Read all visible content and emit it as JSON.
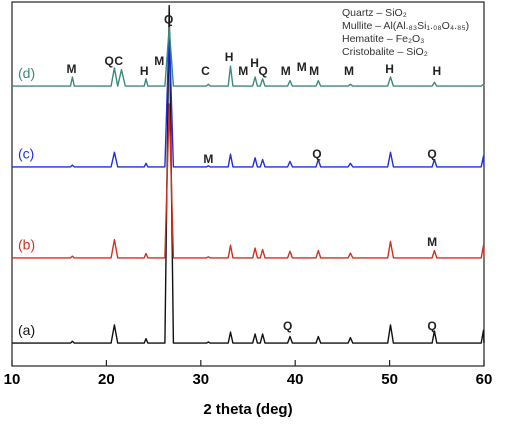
{
  "chart_data": {
    "type": "line",
    "xlabel": "2 theta (deg)",
    "xlim": [
      10,
      60
    ],
    "xticks": [
      10,
      20,
      30,
      40,
      50,
      60
    ],
    "ylim": [
      0,
      100
    ],
    "x": [
      10,
      16.2,
      16.4,
      16.6,
      20.5,
      20.85,
      21.2,
      21.6,
      22.0,
      24.0,
      24.2,
      24.4,
      26.2,
      26.65,
      27.1,
      30.6,
      30.8,
      31.0,
      32.9,
      33.15,
      33.4,
      35.5,
      35.75,
      36.0,
      36.3,
      36.55,
      36.8,
      39.2,
      39.45,
      39.7,
      42.2,
      42.45,
      42.7,
      45.6,
      45.85,
      46.1,
      49.8,
      50.1,
      50.4,
      54.5,
      54.75,
      55.0,
      59.7,
      59.95,
      60
    ],
    "series": [
      {
        "name": "(a)",
        "color": "#111111",
        "values": [
          6.3,
          6.3,
          6.8,
          6.3,
          6.3,
          11.3,
          6.3,
          6.3,
          6.3,
          6.3,
          7.5,
          6.3,
          6.3,
          99,
          6.3,
          6.3,
          6.6,
          6.3,
          6.3,
          9.3,
          6.3,
          6.3,
          8.8,
          6.3,
          6.3,
          8.8,
          6.3,
          6.3,
          8.1,
          6.3,
          6.3,
          8.1,
          6.3,
          6.3,
          7.8,
          6.3,
          6.3,
          11.3,
          6.3,
          6.3,
          9.6,
          6.3,
          6.3,
          9.8,
          6.3
        ]
      },
      {
        "name": "(b)",
        "color": "#d0301e",
        "values": [
          29.7,
          29.7,
          30.2,
          29.7,
          29.7,
          34.7,
          29.7,
          29.7,
          29.7,
          29.7,
          30.9,
          29.7,
          29.7,
          72,
          29.7,
          29.7,
          30.0,
          29.7,
          29.7,
          33.2,
          29.7,
          29.7,
          32.4,
          29.7,
          29.7,
          32.0,
          29.7,
          29.7,
          31.5,
          29.7,
          29.7,
          31.7,
          29.7,
          29.7,
          31.0,
          29.7,
          29.7,
          34.2,
          29.7,
          29.7,
          31.7,
          29.7,
          29.7,
          33.2,
          29.7
        ]
      },
      {
        "name": "(c)",
        "color": "#1f2fe0",
        "values": [
          54.7,
          54.7,
          55.2,
          54.7,
          54.7,
          58.7,
          54.7,
          54.7,
          54.7,
          54.7,
          55.7,
          54.7,
          54.7,
          93,
          54.7,
          54.7,
          55.0,
          54.7,
          54.7,
          58.2,
          54.7,
          54.7,
          57.2,
          54.7,
          54.7,
          56.7,
          54.7,
          54.7,
          56.2,
          54.7,
          54.7,
          56.7,
          54.7,
          54.7,
          55.7,
          54.7,
          54.7,
          58.7,
          54.7,
          54.7,
          56.7,
          54.7,
          54.7,
          57.7,
          54.7
        ]
      },
      {
        "name": "(d)",
        "color": "#3a8a80",
        "values": [
          76.9,
          76.9,
          79.4,
          76.9,
          76.9,
          81.9,
          76.9,
          81.4,
          76.9,
          76.9,
          78.9,
          76.9,
          76.9,
          93,
          76.9,
          76.9,
          77.4,
          76.9,
          76.9,
          82.4,
          76.9,
          76.9,
          79.4,
          76.9,
          76.9,
          78.9,
          76.9,
          76.9,
          78.4,
          76.9,
          76.9,
          78.4,
          76.9,
          76.9,
          77.4,
          76.9,
          76.9,
          79.4,
          76.9,
          76.9,
          77.9,
          76.9,
          76.9,
          77.4,
          76.9
        ]
      }
    ],
    "annotations": [
      {
        "text": "M",
        "x": 16.3,
        "y": 81.3
      },
      {
        "text": "Q",
        "x": 20.3,
        "y": 83.5
      },
      {
        "text": "C",
        "x": 21.3,
        "y": 83.5
      },
      {
        "text": "H",
        "x": 24.0,
        "y": 80.8
      },
      {
        "text": "M",
        "x": 25.6,
        "y": 83.5
      },
      {
        "text": "Q",
        "x": 26.6,
        "y": 95
      },
      {
        "text": "C",
        "x": 30.5,
        "y": 80.8
      },
      {
        "text": "H",
        "x": 33.0,
        "y": 84.6
      },
      {
        "text": "M",
        "x": 34.5,
        "y": 80.8
      },
      {
        "text": "H",
        "x": 35.7,
        "y": 83
      },
      {
        "text": "Q",
        "x": 36.6,
        "y": 80.8
      },
      {
        "text": "M",
        "x": 39.0,
        "y": 80.8
      },
      {
        "text": "M",
        "x": 40.7,
        "y": 81.9
      },
      {
        "text": "M",
        "x": 42.0,
        "y": 80.8
      },
      {
        "text": "M",
        "x": 45.7,
        "y": 80.8
      },
      {
        "text": "H",
        "x": 50.0,
        "y": 81.3
      },
      {
        "text": "H",
        "x": 55.0,
        "y": 80.8
      },
      {
        "text": "M",
        "x": 30.8,
        "y": 56.6
      },
      {
        "text": "Q",
        "x": 42.3,
        "y": 58
      },
      {
        "text": "Q",
        "x": 54.5,
        "y": 58
      },
      {
        "text": "M",
        "x": 54.5,
        "y": 33.8
      },
      {
        "text": "Q",
        "x": 39.2,
        "y": 10.7
      },
      {
        "text": "Q",
        "x": 54.5,
        "y": 10.7
      }
    ],
    "legend_text": [
      "Quartz – SiO₂",
      "Mullite – Al(Al.₈₃Si₁.₀₈O₄.₈₅)",
      "Hematite – Fe₂O₃",
      "Cristobalite – SiO₂"
    ]
  }
}
